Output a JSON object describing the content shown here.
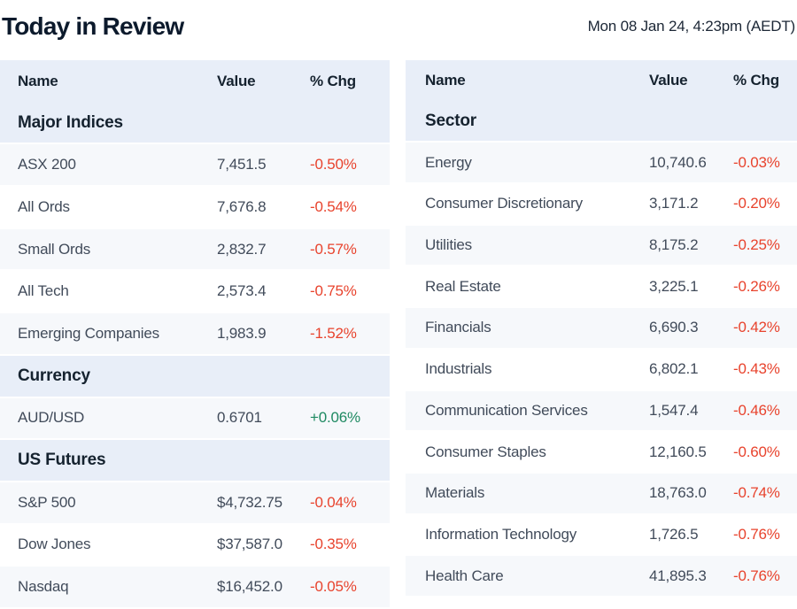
{
  "header": {
    "title": "Today in Review",
    "timestamp": "Mon 08 Jan 24, 4:23pm (AEDT)"
  },
  "columns": {
    "name": "Name",
    "value": "Value",
    "chg": "% Chg"
  },
  "colors": {
    "header_bg": "#e8eef8",
    "alt_row_bg": "#f6f8fb",
    "negative": "#e8432d",
    "positive": "#1f8a62",
    "heading_text": "#15222f",
    "body_text": "#414b5a"
  },
  "left_table": {
    "sections": [
      {
        "label": "Major Indices",
        "rows": [
          {
            "name": "ASX 200",
            "value": "7,451.5",
            "chg": "-0.50%",
            "dir": "down"
          },
          {
            "name": "All Ords",
            "value": "7,676.8",
            "chg": "-0.54%",
            "dir": "down"
          },
          {
            "name": "Small Ords",
            "value": "2,832.7",
            "chg": "-0.57%",
            "dir": "down"
          },
          {
            "name": "All Tech",
            "value": "2,573.4",
            "chg": "-0.75%",
            "dir": "down"
          },
          {
            "name": "Emerging Companies",
            "value": "1,983.9",
            "chg": "-1.52%",
            "dir": "down"
          }
        ]
      },
      {
        "label": "Currency",
        "rows": [
          {
            "name": "AUD/USD",
            "value": "0.6701",
            "chg": "+0.06%",
            "dir": "up"
          }
        ]
      },
      {
        "label": "US Futures",
        "rows": [
          {
            "name": "S&P 500",
            "value": "$4,732.75",
            "chg": "-0.04%",
            "dir": "down"
          },
          {
            "name": "Dow Jones",
            "value": "$37,587.0",
            "chg": "-0.35%",
            "dir": "down"
          },
          {
            "name": "Nasdaq",
            "value": "$16,452.0",
            "chg": "-0.05%",
            "dir": "down"
          }
        ]
      }
    ]
  },
  "right_table": {
    "sections": [
      {
        "label": "Sector",
        "rows": [
          {
            "name": "Energy",
            "value": "10,740.6",
            "chg": "-0.03%",
            "dir": "down"
          },
          {
            "name": "Consumer Discretionary",
            "value": "3,171.2",
            "chg": "-0.20%",
            "dir": "down"
          },
          {
            "name": "Utilities",
            "value": "8,175.2",
            "chg": "-0.25%",
            "dir": "down"
          },
          {
            "name": "Real Estate",
            "value": "3,225.1",
            "chg": "-0.26%",
            "dir": "down"
          },
          {
            "name": "Financials",
            "value": "6,690.3",
            "chg": "-0.42%",
            "dir": "down"
          },
          {
            "name": "Industrials",
            "value": "6,802.1",
            "chg": "-0.43%",
            "dir": "down"
          },
          {
            "name": "Communication Services",
            "value": "1,547.4",
            "chg": "-0.46%",
            "dir": "down"
          },
          {
            "name": "Consumer Staples",
            "value": "12,160.5",
            "chg": "-0.60%",
            "dir": "down"
          },
          {
            "name": "Materials",
            "value": "18,763.0",
            "chg": "-0.74%",
            "dir": "down"
          },
          {
            "name": "Information Technology",
            "value": "1,726.5",
            "chg": "-0.76%",
            "dir": "down"
          },
          {
            "name": "Health Care",
            "value": "41,895.3",
            "chg": "-0.76%",
            "dir": "down"
          }
        ]
      }
    ]
  }
}
